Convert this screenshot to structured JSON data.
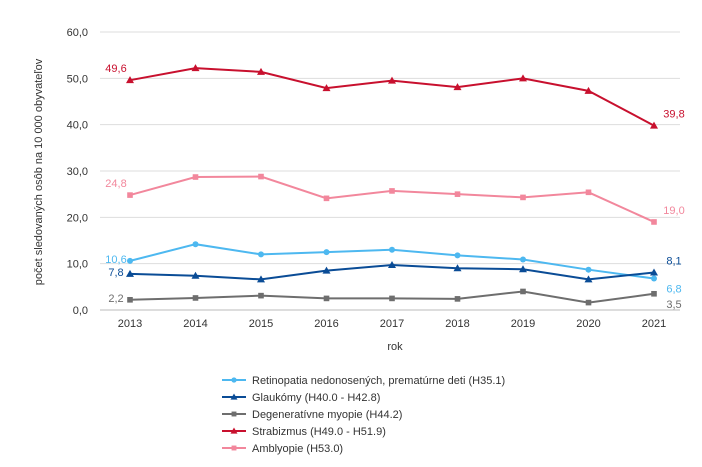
{
  "chart_data": {
    "type": "line",
    "x": [
      "2013",
      "2014",
      "2015",
      "2016",
      "2017",
      "2018",
      "2019",
      "2020",
      "2021"
    ],
    "ylabel": "počet sledovaných osôb na 10 000 obyvateľov",
    "xlabel": "rok",
    "ylim": [
      0,
      60
    ],
    "yticks": [
      "0,0",
      "10,0",
      "20,0",
      "30,0",
      "40,0",
      "50,0",
      "60,0"
    ],
    "grid": true,
    "legend_position": "bottom",
    "series": [
      {
        "name": "Retinopatia nedonosených, prematúrne deti (H35.1)",
        "color": "#4db8f0",
        "marker": "circle",
        "values": [
          10.6,
          14.2,
          12.0,
          12.5,
          13.0,
          11.8,
          10.9,
          8.7,
          6.8
        ],
        "labels": {
          "first": "10,6",
          "last": "6,8"
        }
      },
      {
        "name": "Glaukómy (H40.0 - H42.8)",
        "color": "#0a4c96",
        "marker": "triangle",
        "values": [
          7.8,
          7.4,
          6.6,
          8.5,
          9.7,
          9.0,
          8.8,
          6.6,
          8.1
        ],
        "labels": {
          "first": "7,8",
          "last": "8,1"
        }
      },
      {
        "name": "Degeneratívne myopie (H44.2)",
        "color": "#6e6e6e",
        "marker": "square",
        "values": [
          2.2,
          2.6,
          3.1,
          2.5,
          2.5,
          2.4,
          4.0,
          1.6,
          3.5
        ],
        "labels": {
          "first": "2,2",
          "last": "3,5"
        }
      },
      {
        "name": "Strabizmus (H49.0 - H51.9)",
        "color": "#c8102e",
        "marker": "triangle",
        "values": [
          49.6,
          52.2,
          51.4,
          47.9,
          49.5,
          48.1,
          50.0,
          47.3,
          39.8
        ],
        "labels": {
          "first": "49,6",
          "last": "39,8"
        }
      },
      {
        "name": "Amblyopie (H53.0)",
        "color": "#f2879c",
        "marker": "square",
        "values": [
          24.8,
          28.7,
          28.8,
          24.1,
          25.7,
          25.0,
          24.3,
          25.4,
          19.0
        ],
        "labels": {
          "first": "24,8",
          "last": "19,0"
        }
      }
    ]
  }
}
